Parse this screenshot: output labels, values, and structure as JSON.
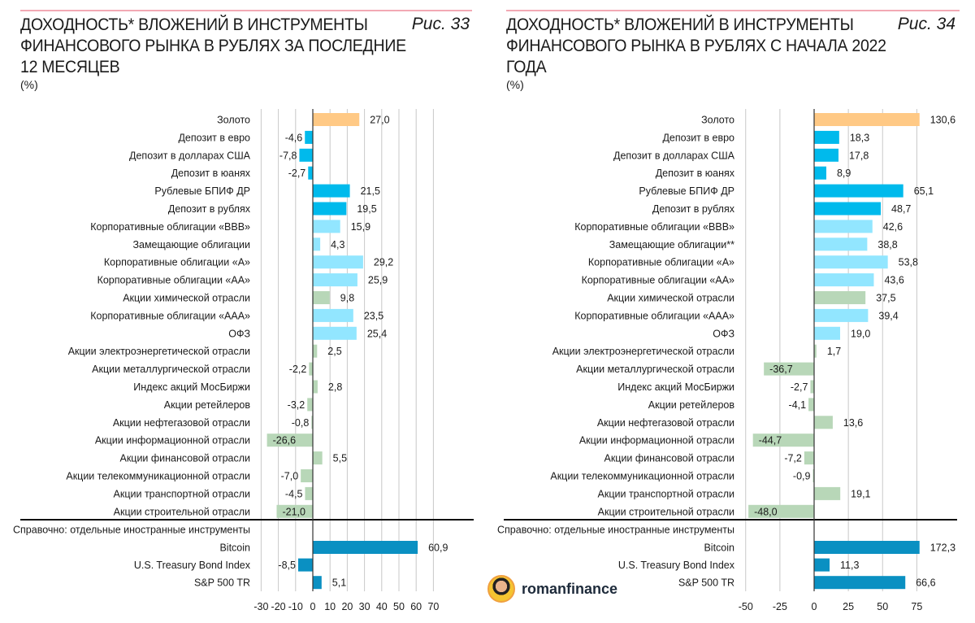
{
  "colors": {
    "gold": "#FFC985",
    "deposit": "#00BAEC",
    "bond": "#92E6FF",
    "stock": "#B8D7B8",
    "foreign": "#0A90C2",
    "grid": "#c8c8c8"
  },
  "logo_text": "romanfinance",
  "chart_data": [
    {
      "type": "bar",
      "orientation": "horizontal",
      "title": "ДОХОДНОСТЬ* ВЛОЖЕНИЙ В ИНСТРУМЕНТЫ ФИНАНСОВОГО РЫНКА В РУБЛЯХ ЗА ПОСЛЕДНИЕ 12 МЕСЯЦЕВ",
      "figure": "Рис. 33",
      "unit": "(%)",
      "section_label": "Справочно: отдельные иностранные инструменты",
      "xlim": [
        -30,
        70
      ],
      "xticks": [
        -30,
        -20,
        -10,
        0,
        10,
        20,
        30,
        40,
        50,
        60,
        70
      ],
      "grid": true,
      "items": [
        {
          "label": "Золото",
          "value": 27.0,
          "text": "27,0",
          "group": "gold"
        },
        {
          "label": "Депозит в евро",
          "value": -4.6,
          "text": "-4,6",
          "group": "deposit"
        },
        {
          "label": "Депозит в долларах США",
          "value": -7.8,
          "text": "-7,8",
          "group": "deposit"
        },
        {
          "label": "Депозит в юанях",
          "value": -2.7,
          "text": "-2,7",
          "group": "deposit"
        },
        {
          "label": "Рублевые БПИФ ДР",
          "value": 21.5,
          "text": "21,5",
          "group": "deposit"
        },
        {
          "label": "Депозит в рублях",
          "value": 19.5,
          "text": "19,5",
          "group": "deposit"
        },
        {
          "label": "Корпоративные облигации «BBB»",
          "value": 15.9,
          "text": "15,9",
          "group": "bond"
        },
        {
          "label": "Замещающие облигации",
          "value": 4.3,
          "text": "4,3",
          "group": "bond"
        },
        {
          "label": "Корпоративные облигации «А»",
          "value": 29.2,
          "text": "29,2",
          "group": "bond"
        },
        {
          "label": "Корпоративные облигации «АА»",
          "value": 25.9,
          "text": "25,9",
          "group": "bond"
        },
        {
          "label": "Акции химической отрасли",
          "value": 9.8,
          "text": "9,8",
          "group": "stock"
        },
        {
          "label": "Корпоративные облигации «ААА»",
          "value": 23.5,
          "text": "23,5",
          "group": "bond"
        },
        {
          "label": "ОФЗ",
          "value": 25.4,
          "text": "25,4",
          "group": "bond"
        },
        {
          "label": "Акции электроэнергетической отрасли",
          "value": 2.5,
          "text": "2,5",
          "group": "stock"
        },
        {
          "label": "Акции металлургической отрасли",
          "value": -2.2,
          "text": "-2,2",
          "group": "stock"
        },
        {
          "label": "Индекс акций МосБиржи",
          "value": 2.8,
          "text": "2,8",
          "group": "stock"
        },
        {
          "label": "Акции ретейлеров",
          "value": -3.2,
          "text": "-3,2",
          "group": "stock"
        },
        {
          "label": "Акции нефтегазовой отрасли",
          "value": -0.8,
          "text": "-0,8",
          "group": "stock"
        },
        {
          "label": "Акции информационной отрасли",
          "value": -26.6,
          "text": "-26,6",
          "group": "stock"
        },
        {
          "label": "Акции финансовой отрасли",
          "value": 5.5,
          "text": "5,5",
          "group": "stock"
        },
        {
          "label": "Акции телекоммуникационной отрасли",
          "value": -7.0,
          "text": "-7,0",
          "group": "stock"
        },
        {
          "label": "Акции транспортной отрасли",
          "value": -4.5,
          "text": "-4,5",
          "group": "stock"
        },
        {
          "label": "Акции строительной отрасли",
          "value": -21.0,
          "text": "-21,0",
          "group": "stock"
        }
      ],
      "reference_items": [
        {
          "label": "Bitcoin",
          "value": 60.9,
          "text": "60,9",
          "group": "foreign"
        },
        {
          "label": "U.S. Treasury Bond Index",
          "value": -8.5,
          "text": "-8,5",
          "group": "foreign"
        },
        {
          "label": "S&P 500 TR",
          "value": 5.1,
          "text": "5,1",
          "group": "foreign"
        }
      ]
    },
    {
      "type": "bar",
      "orientation": "horizontal",
      "title": "ДОХОДНОСТЬ* ВЛОЖЕНИЙ В ИНСТРУМЕНТЫ ФИНАНСОВОГО РЫНКА В РУБЛЯХ С НАЧАЛА 2022 ГОДА",
      "figure": "Рис. 34",
      "unit": "(%)",
      "section_label": "Справочно: отдельные иностранные инструменты",
      "xlim": [
        -50,
        77
      ],
      "xticks": [
        -50,
        -25,
        0,
        25,
        50,
        75
      ],
      "grid": true,
      "items": [
        {
          "label": "Золото",
          "value": 130.6,
          "text": "130,6",
          "group": "gold"
        },
        {
          "label": "Депозит в евро",
          "value": 18.3,
          "text": "18,3",
          "group": "deposit"
        },
        {
          "label": "Депозит в долларах США",
          "value": 17.8,
          "text": "17,8",
          "group": "deposit"
        },
        {
          "label": "Депозит в юанях",
          "value": 8.9,
          "text": "8,9",
          "group": "deposit"
        },
        {
          "label": "Рублевые БПИФ ДР",
          "value": 65.1,
          "text": "65,1",
          "group": "deposit"
        },
        {
          "label": "Депозит в рублях",
          "value": 48.7,
          "text": "48,7",
          "group": "deposit"
        },
        {
          "label": "Корпоративные облигации «BBB»",
          "value": 42.6,
          "text": "42,6",
          "group": "bond"
        },
        {
          "label": "Замещающие облигации**",
          "value": 38.8,
          "text": "38,8",
          "group": "bond"
        },
        {
          "label": "Корпоративные облигации «А»",
          "value": 53.8,
          "text": "53,8",
          "group": "bond"
        },
        {
          "label": "Корпоративные облигации «АА»",
          "value": 43.6,
          "text": "43,6",
          "group": "bond"
        },
        {
          "label": "Акции химической отрасли",
          "value": 37.5,
          "text": "37,5",
          "group": "stock"
        },
        {
          "label": "Корпоративные облигации «ААА»",
          "value": 39.4,
          "text": "39,4",
          "group": "bond"
        },
        {
          "label": "ОФЗ",
          "value": 19.0,
          "text": "19,0",
          "group": "bond"
        },
        {
          "label": "Акции электроэнергетической отрасли",
          "value": 1.7,
          "text": "1,7",
          "group": "stock"
        },
        {
          "label": "Акции металлургической отрасли",
          "value": -36.7,
          "text": "-36,7",
          "group": "stock"
        },
        {
          "label": "Индекс акций МосБиржи",
          "value": -2.7,
          "text": "-2,7",
          "group": "stock"
        },
        {
          "label": "Акции ретейлеров",
          "value": -4.1,
          "text": "-4,1",
          "group": "stock"
        },
        {
          "label": "Акции нефтегазовой отрасли",
          "value": 13.6,
          "text": "13,6",
          "group": "stock"
        },
        {
          "label": "Акции информационной отрасли",
          "value": -44.7,
          "text": "-44,7",
          "group": "stock"
        },
        {
          "label": "Акции финансовой отрасли",
          "value": -7.2,
          "text": "-7,2",
          "group": "stock"
        },
        {
          "label": "Акции телекоммуникационной отрасли",
          "value": -0.9,
          "text": "-0,9",
          "group": "stock"
        },
        {
          "label": "Акции транспортной отрасли",
          "value": 19.1,
          "text": "19,1",
          "group": "stock"
        },
        {
          "label": "Акции строительной отрасли",
          "value": -48.0,
          "text": "-48,0",
          "group": "stock"
        }
      ],
      "reference_items": [
        {
          "label": "Bitcoin",
          "value": 172.3,
          "text": "172,3",
          "group": "foreign"
        },
        {
          "label": "U.S. Treasury Bond Index",
          "value": 11.3,
          "text": "11,3",
          "group": "foreign"
        },
        {
          "label": "S&P 500 TR",
          "value": 66.6,
          "text": "66,6",
          "group": "foreign"
        }
      ]
    }
  ]
}
